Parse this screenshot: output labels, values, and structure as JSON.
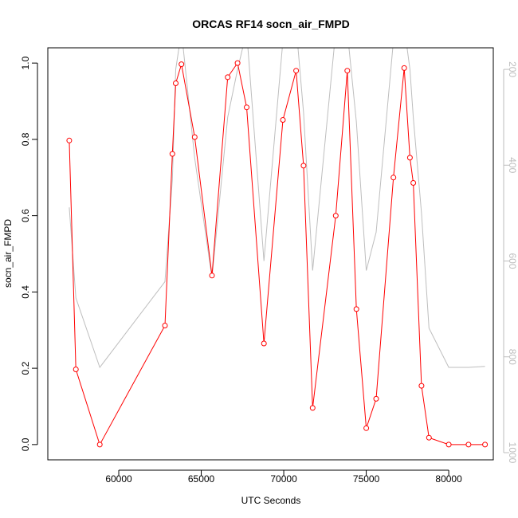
{
  "chart_data": {
    "type": "line",
    "title": "ORCAS RF14 socn_air_FMPD",
    "xlabel": "UTC Seconds",
    "ylabel": "socn_air_FMPD",
    "xlim": [
      55700,
      82700
    ],
    "ylim": [
      -0.04,
      1.04
    ],
    "x_ticks": [
      60000,
      65000,
      70000,
      75000,
      80000
    ],
    "y_ticks": [
      0.0,
      0.2,
      0.4,
      0.6,
      0.8,
      1.0
    ],
    "right_axis": {
      "ticks": [
        200,
        400,
        600,
        800,
        1000
      ],
      "range_top_to_bottom": [
        155,
        1015
      ],
      "color": "#bebebe"
    },
    "series": [
      {
        "color": "#ff0000",
        "x": [
          57000,
          57400,
          58850,
          62800,
          63250,
          63450,
          63800,
          64600,
          65650,
          66600,
          67200,
          67750,
          68800,
          69950,
          70750,
          71200,
          71750,
          73150,
          73850,
          74400,
          75000,
          75600,
          76650,
          77300,
          77650,
          77850,
          78350,
          78800,
          80000,
          81200,
          82200
        ],
        "values": [
          0.797,
          0.197,
          0.0,
          0.312,
          0.762,
          0.947,
          0.997,
          0.806,
          0.443,
          0.963,
          1.0,
          0.884,
          0.265,
          0.851,
          0.98,
          0.731,
          0.096,
          0.6,
          0.98,
          0.355,
          0.043,
          0.12,
          0.7,
          0.987,
          0.752,
          0.686,
          0.154,
          0.018,
          0.0,
          0.0,
          0.0
        ]
      },
      {
        "color": "#bebebe",
        "axis": "right",
        "x": [
          57000,
          57400,
          58850,
          62800,
          63250,
          63450,
          63800,
          64600,
          65650,
          66600,
          67200,
          67750,
          68800,
          69950,
          70750,
          71200,
          71750,
          73150,
          73850,
          74400,
          75000,
          75600,
          76650,
          77300,
          77650,
          77850,
          78350,
          78800,
          80000,
          81200,
          82200
        ],
        "values": [
          488,
          677,
          822,
          643,
          430,
          200,
          120,
          385,
          635,
          300,
          200,
          120,
          600,
          140,
          110,
          290,
          620,
          120,
          120,
          310,
          620,
          540,
          140,
          110,
          200,
          300,
          500,
          740,
          822,
          822,
          820
        ]
      }
    ]
  }
}
